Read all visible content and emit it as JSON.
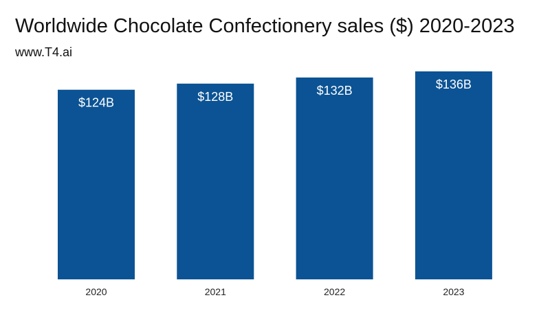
{
  "chart_data": {
    "type": "bar",
    "title": "Worldwide Chocolate Confectionery sales ($) 2020-2023",
    "subtitle": "www.T4.ai",
    "categories": [
      "2020",
      "2021",
      "2022",
      "2023"
    ],
    "values": [
      124,
      128,
      132,
      136
    ],
    "data_labels": [
      "$124B",
      "$128B",
      "$132B",
      "$136B"
    ],
    "unit": "$B",
    "xlabel": "",
    "ylabel": "",
    "ylim": [
      0,
      136
    ],
    "grid": false,
    "legend": "none",
    "bar_color": "#0b5394"
  }
}
